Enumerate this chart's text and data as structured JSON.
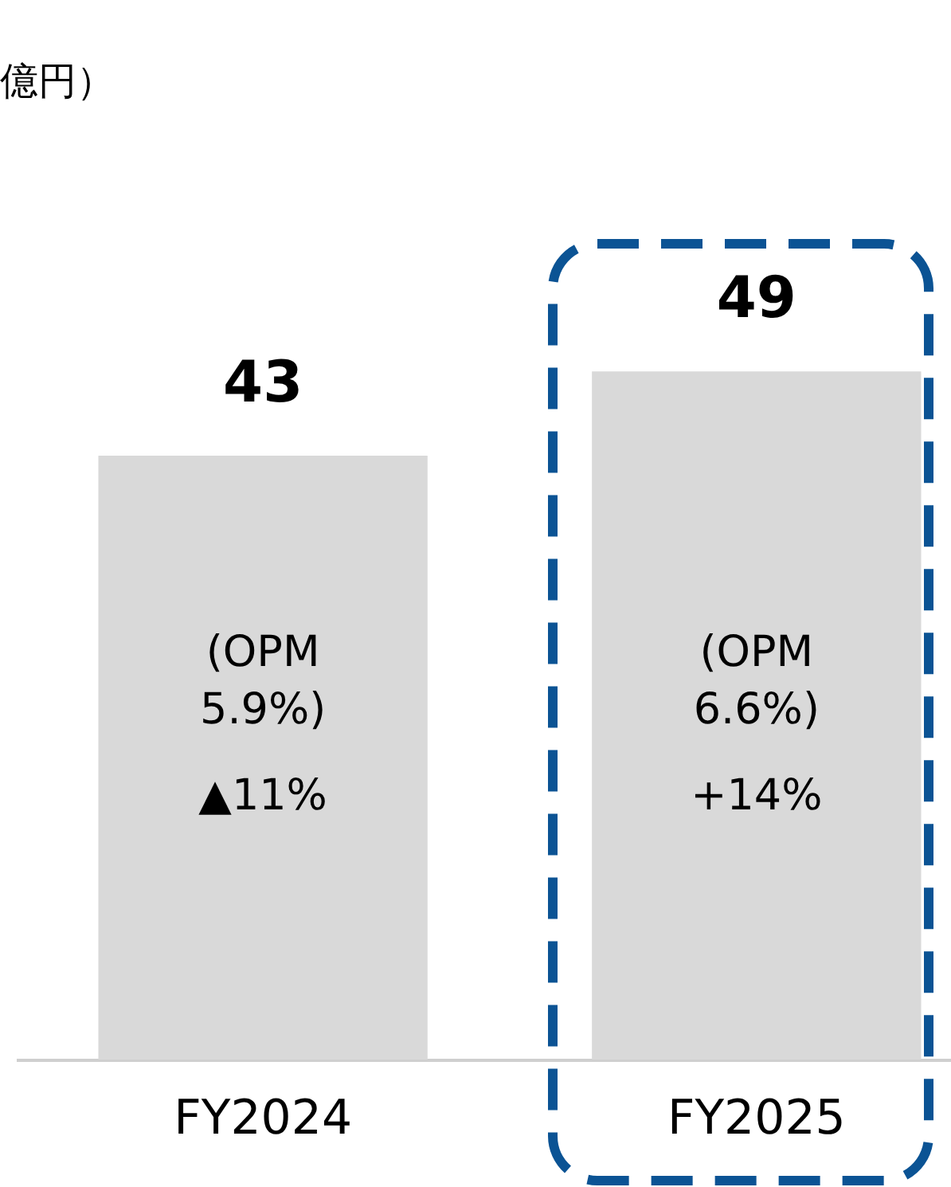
{
  "chart_data": {
    "type": "bar",
    "categories": [
      "FY2024",
      "FY2025"
    ],
    "values": [
      43,
      49
    ],
    "color": "#d9d9d9",
    "data_labels": true,
    "annotations": [
      "億円）",
      "(OPM\n5.9%)",
      "▲11%",
      "(OPM\n6.6%)",
      "+14%"
    ]
  }
}
